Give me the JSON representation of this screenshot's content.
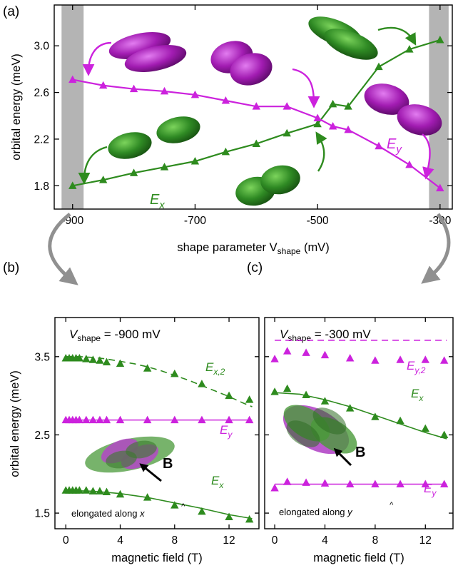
{
  "colors": {
    "green": "#2e8b1e",
    "magenta": "#cc22dd",
    "gray_band": "#b4b4b4",
    "arrow_gray": "#909090"
  },
  "chart_data": [
    {
      "id": "a",
      "type": "line",
      "panel_label": "(a)",
      "xlabel": "shape parameter V",
      "xlabel_sub": "shape",
      "xlabel_unit": " (mV)",
      "ylabel": "orbital energy (meV)",
      "xlim": [
        -930,
        -280
      ],
      "ylim": [
        1.6,
        3.35
      ],
      "xticks": [
        -900,
        -700,
        -500,
        -300
      ],
      "xtick_labels": [
        "-900",
        "-700",
        "-500",
        "-300"
      ],
      "yticks": [
        1.8,
        2.2,
        2.6,
        3.0
      ],
      "ytick_labels": [
        "1.8",
        "2.2",
        "2.6",
        "3.0"
      ],
      "gray_bands": [
        [
          -918,
          -882
        ],
        [
          -318,
          -286
        ]
      ],
      "series": [
        {
          "name": "E_x",
          "label_main": "E",
          "label_sub": "x",
          "color": "green",
          "line": "solid",
          "show_markers": true,
          "x": [
            -900,
            -850,
            -800,
            -750,
            -700,
            -650,
            -600,
            -550,
            -500,
            -475,
            -450,
            -400,
            -350,
            -300
          ],
          "y": [
            1.8,
            1.85,
            1.91,
            1.96,
            2.01,
            2.09,
            2.16,
            2.25,
            2.33,
            2.5,
            2.48,
            2.82,
            2.97,
            3.05
          ]
        },
        {
          "name": "E_y",
          "label_main": "E",
          "label_sub": "y",
          "color": "magenta",
          "line": "solid",
          "show_markers": true,
          "x": [
            -900,
            -850,
            -800,
            -750,
            -700,
            -650,
            -600,
            -550,
            -500,
            -475,
            -450,
            -400,
            -350,
            -300
          ],
          "y": [
            2.71,
            2.66,
            2.63,
            2.61,
            2.58,
            2.53,
            2.48,
            2.48,
            2.38,
            2.31,
            2.28,
            2.14,
            1.98,
            1.78
          ]
        }
      ]
    },
    {
      "id": "b",
      "type": "scatter",
      "panel_label": "(b)",
      "title_main": "V",
      "title_sub": "shape",
      "title_rest": " = -900 mV",
      "xlabel": "magnetic field (T)",
      "ylabel": "orbital energy (meV)",
      "xlim": [
        -0.8,
        14.2
      ],
      "ylim": [
        1.3,
        4.0
      ],
      "xticks": [
        0,
        4,
        8,
        12
      ],
      "xtick_labels": [
        "0",
        "4",
        "8",
        "12"
      ],
      "yticks": [
        1.5,
        2.5,
        3.5
      ],
      "ytick_labels": [
        "1.5",
        "2.5",
        "3.5"
      ],
      "annotation": "elongated along",
      "annotation_hat": "x",
      "field_label": "B",
      "series": [
        {
          "name": "E_x,2",
          "label_main": "E",
          "label_sub": "x,2",
          "color": "green",
          "line": "dashed",
          "x": [
            0,
            0.25,
            0.5,
            0.75,
            1,
            1.5,
            2,
            2.5,
            3,
            4,
            6,
            8,
            10,
            12,
            13.5
          ],
          "y": [
            3.48,
            3.48,
            3.48,
            3.48,
            3.48,
            3.47,
            3.46,
            3.45,
            3.43,
            3.41,
            3.35,
            3.28,
            3.15,
            3.0,
            2.95
          ],
          "fit": [
            [
              0,
              3.5
            ],
            [
              1,
              3.5
            ],
            [
              2,
              3.49
            ],
            [
              3,
              3.47
            ],
            [
              4,
              3.44
            ],
            [
              5,
              3.41
            ],
            [
              6,
              3.37
            ],
            [
              7,
              3.32
            ],
            [
              8,
              3.26
            ],
            [
              9,
              3.2
            ],
            [
              10,
              3.13
            ],
            [
              11,
              3.06
            ],
            [
              12,
              2.99
            ],
            [
              13,
              2.91
            ],
            [
              13.7,
              2.86
            ]
          ]
        },
        {
          "name": "E_y",
          "label_main": "E",
          "label_sub": "y",
          "color": "magenta",
          "line": "solid",
          "x": [
            0,
            0.25,
            0.5,
            0.75,
            1,
            1.5,
            2,
            2.5,
            3,
            4,
            6,
            8,
            10,
            12,
            13.5
          ],
          "y": [
            2.69,
            2.69,
            2.69,
            2.69,
            2.69,
            2.69,
            2.69,
            2.69,
            2.69,
            2.69,
            2.69,
            2.69,
            2.69,
            2.69,
            2.69
          ],
          "fit": [
            [
              0,
              2.69
            ],
            [
              13.7,
              2.69
            ]
          ]
        },
        {
          "name": "E_x",
          "label_main": "E",
          "label_sub": "x",
          "color": "green",
          "line": "solid",
          "x": [
            0,
            0.25,
            0.5,
            0.75,
            1,
            1.5,
            2,
            2.5,
            3,
            4,
            6,
            8,
            10,
            12,
            13.5
          ],
          "y": [
            1.79,
            1.79,
            1.79,
            1.79,
            1.79,
            1.79,
            1.78,
            1.78,
            1.77,
            1.74,
            1.7,
            1.6,
            1.52,
            1.45,
            1.42
          ],
          "fit": [
            [
              0,
              1.79
            ],
            [
              2,
              1.78
            ],
            [
              4,
              1.75
            ],
            [
              6,
              1.7
            ],
            [
              8,
              1.63
            ],
            [
              10,
              1.56
            ],
            [
              12,
              1.48
            ],
            [
              13.7,
              1.43
            ]
          ]
        }
      ]
    },
    {
      "id": "c",
      "type": "scatter",
      "panel_label": "(c)",
      "title_main": "V",
      "title_sub": "shape",
      "title_rest": " = -300 mV",
      "xlabel": "magnetic field (T)",
      "xlim": [
        -0.8,
        14.2
      ],
      "ylim": [
        1.3,
        4.0
      ],
      "xticks": [
        0,
        4,
        8,
        12
      ],
      "xtick_labels": [
        "0",
        "4",
        "8",
        "12"
      ],
      "yticks": [
        1.5,
        2.5,
        3.5
      ],
      "annotation": "elongated along",
      "annotation_hat": "y",
      "field_label": "B",
      "series": [
        {
          "name": "E_y,2",
          "label_main": "E",
          "label_sub": "y,2",
          "color": "magenta",
          "line": "dashed",
          "x": [
            0,
            1,
            2.5,
            4,
            6,
            8,
            10,
            12,
            13.5
          ],
          "y": [
            3.47,
            3.57,
            3.55,
            3.52,
            3.48,
            3.45,
            3.46,
            3.46,
            3.45
          ],
          "fit": [
            [
              0,
              3.71
            ],
            [
              13.7,
              3.71
            ]
          ]
        },
        {
          "name": "E_x",
          "label_main": "E",
          "label_sub": "x",
          "color": "green",
          "line": "solid",
          "x": [
            0,
            1,
            2.5,
            4,
            6,
            8,
            10,
            12,
            13.5
          ],
          "y": [
            3.05,
            3.09,
            3.01,
            2.93,
            2.84,
            2.73,
            2.68,
            2.58,
            2.5
          ],
          "fit": [
            [
              0,
              3.04
            ],
            [
              2,
              3.02
            ],
            [
              4,
              2.95
            ],
            [
              6,
              2.86
            ],
            [
              8,
              2.75
            ],
            [
              10,
              2.64
            ],
            [
              12,
              2.53
            ],
            [
              13.7,
              2.45
            ]
          ]
        },
        {
          "name": "E_y",
          "label_main": "E",
          "label_sub": "y",
          "color": "magenta",
          "line": "solid",
          "x": [
            0,
            1,
            2.5,
            4,
            6,
            8,
            10,
            12,
            13.5
          ],
          "y": [
            1.82,
            1.9,
            1.89,
            1.88,
            1.87,
            1.87,
            1.87,
            1.87,
            1.87
          ],
          "fit": [
            [
              0,
              1.87
            ],
            [
              13.7,
              1.87
            ]
          ]
        }
      ]
    }
  ]
}
